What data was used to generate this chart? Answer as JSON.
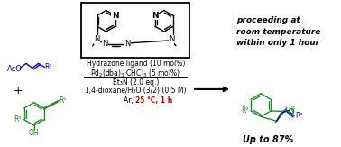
{
  "bg_color": "#ffffff",
  "green_color": "#228B22",
  "blue_color": "#0000cc",
  "red_color": "#cc0000",
  "black_color": "#000000",
  "italic_bold_text": "proceeding at\nroom temperature\nwithin only 1 hour",
  "line1": "Hydrazone ligand (10 mol%)",
  "line2": "Pd₂(dba)₃·CHCl₃ (5 mol%)",
  "line3": "Et₃N (2.0 eq.)",
  "line4": "1,4-dioxane/H₂O (3/2) (0.5 M)",
  "line5_black": "Ar, ",
  "line5_red": "25 °C, 1 h",
  "yield_text": "Up to 87%",
  "figsize": [
    3.78,
    1.63
  ],
  "dpi": 100
}
